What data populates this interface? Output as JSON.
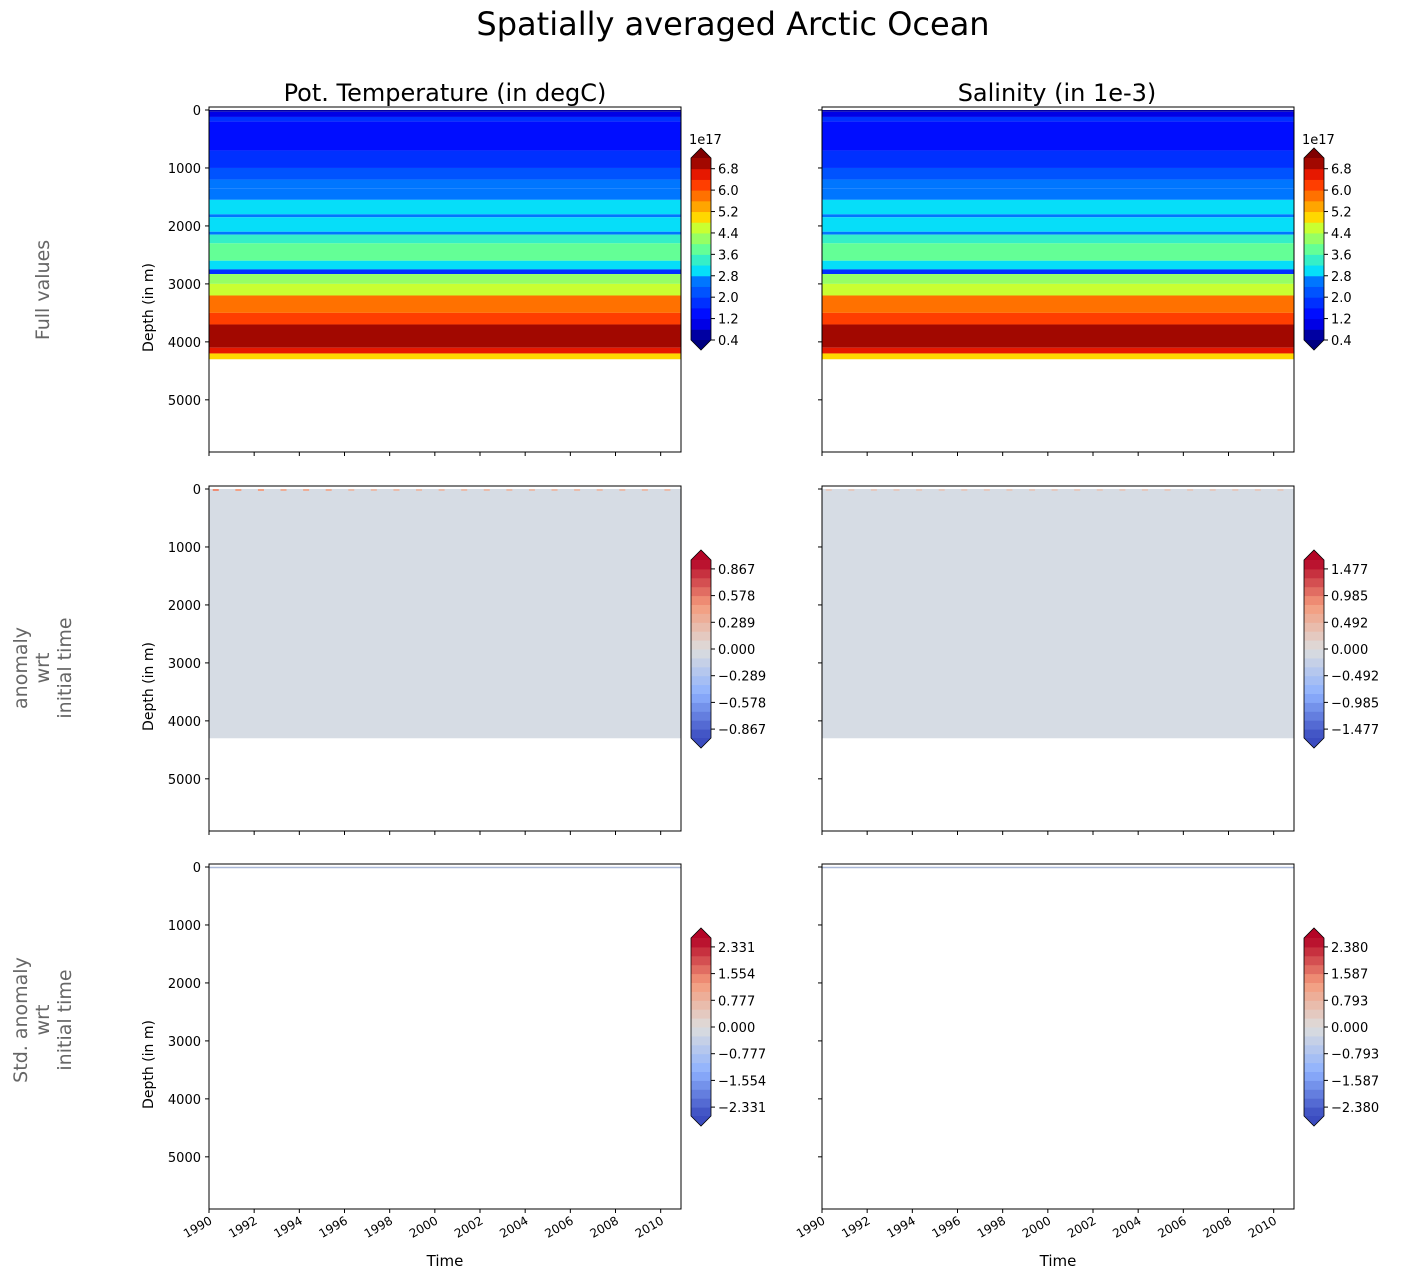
{
  "suptitle": "Spatially averaged Arctic Ocean",
  "column_titles": [
    "Pot. Temperature (in degC)",
    "Salinity (in 1e-3)"
  ],
  "row_labels": [
    [
      "Full values"
    ],
    [
      "anomaly",
      "wrt",
      "initial time"
    ],
    [
      "Std. anomaly",
      "wrt",
      "initial time"
    ]
  ],
  "chart_data": [
    {
      "type": "heatmap",
      "row": 0,
      "col": 0,
      "colormap": "jet",
      "ylabel": "Depth (in m)",
      "xlabel": "",
      "ylim": [
        5900,
        0
      ],
      "xlim": [
        1990,
        2010.9
      ],
      "yticks": [
        0,
        1000,
        2000,
        3000,
        4000,
        5000
      ],
      "xticks": [
        "1990",
        "1992",
        "1994",
        "1996",
        "1998",
        "2000",
        "2002",
        "2004",
        "2006",
        "2008",
        "2010"
      ],
      "data_max_depth": 4300,
      "profile": [
        [
          0,
          30,
          0.6
        ],
        [
          30,
          120,
          1.0
        ],
        [
          120,
          200,
          1.6
        ],
        [
          200,
          700,
          1.2
        ],
        [
          700,
          1000,
          1.6
        ],
        [
          1000,
          1200,
          2.0
        ],
        [
          1200,
          1350,
          2.4
        ],
        [
          1350,
          1550,
          2.6
        ],
        [
          1550,
          1800,
          2.9
        ],
        [
          1800,
          1850,
          2.5
        ],
        [
          1850,
          2100,
          3.0
        ],
        [
          2100,
          2150,
          2.4
        ],
        [
          2150,
          2300,
          3.2
        ],
        [
          2300,
          2600,
          3.7
        ],
        [
          2600,
          2750,
          3.0
        ],
        [
          2750,
          2830,
          1.8
        ],
        [
          2830,
          3000,
          4.2
        ],
        [
          3000,
          3200,
          4.6
        ],
        [
          3200,
          3500,
          5.6
        ],
        [
          3500,
          3700,
          6.2
        ],
        [
          3700,
          4100,
          7.0
        ],
        [
          4100,
          4200,
          6.4
        ],
        [
          4200,
          4300,
          5.0
        ]
      ],
      "colorbar": {
        "offset_label": "1e17",
        "ticks": [
          "0.4",
          "1.2",
          "2.0",
          "2.8",
          "3.6",
          "4.4",
          "5.2",
          "6.0",
          "6.8"
        ],
        "range": [
          0.4,
          7.2
        ],
        "nbands": 17,
        "extend": "both"
      }
    },
    {
      "type": "heatmap",
      "row": 0,
      "col": 1,
      "colormap": "jet",
      "ylabel": "",
      "xlabel": "",
      "ylim": [
        5900,
        0
      ],
      "xlim": [
        1990,
        2010.9
      ],
      "yticks": [
        0,
        1000,
        2000,
        3000,
        4000,
        5000
      ],
      "xticks": [
        "1990",
        "1992",
        "1994",
        "1996",
        "1998",
        "2000",
        "2002",
        "2004",
        "2006",
        "2008",
        "2010"
      ],
      "data_max_depth": 4300,
      "profile": [
        [
          0,
          30,
          0.6
        ],
        [
          30,
          120,
          1.0
        ],
        [
          120,
          200,
          1.6
        ],
        [
          200,
          700,
          1.2
        ],
        [
          700,
          1000,
          1.6
        ],
        [
          1000,
          1200,
          2.0
        ],
        [
          1200,
          1350,
          2.4
        ],
        [
          1350,
          1550,
          2.6
        ],
        [
          1550,
          1800,
          2.9
        ],
        [
          1800,
          1850,
          2.5
        ],
        [
          1850,
          2100,
          3.0
        ],
        [
          2100,
          2150,
          2.4
        ],
        [
          2150,
          2300,
          3.2
        ],
        [
          2300,
          2600,
          3.7
        ],
        [
          2600,
          2750,
          3.0
        ],
        [
          2750,
          2830,
          1.8
        ],
        [
          2830,
          3000,
          4.2
        ],
        [
          3000,
          3200,
          4.6
        ],
        [
          3200,
          3500,
          5.6
        ],
        [
          3500,
          3700,
          6.2
        ],
        [
          3700,
          4100,
          7.0
        ],
        [
          4100,
          4200,
          6.4
        ],
        [
          4200,
          4300,
          5.0
        ]
      ],
      "colorbar": {
        "offset_label": "1e17",
        "ticks": [
          "0.4",
          "1.2",
          "2.0",
          "2.8",
          "3.6",
          "4.4",
          "5.2",
          "6.0",
          "6.8"
        ],
        "range": [
          0.4,
          7.2
        ],
        "nbands": 17,
        "extend": "both"
      }
    },
    {
      "type": "heatmap",
      "row": 1,
      "col": 0,
      "colormap": "coolwarm",
      "ylabel": "Depth (in m)",
      "xlabel": "",
      "ylim": [
        5900,
        0
      ],
      "xlim": [
        1990,
        2010.9
      ],
      "yticks": [
        0,
        1000,
        2000,
        3000,
        4000,
        5000
      ],
      "xticks": [
        "1990",
        "1992",
        "1994",
        "1996",
        "1998",
        "2000",
        "2002",
        "2004",
        "2006",
        "2008",
        "2010"
      ],
      "data_max_depth": 4300,
      "fill_value": 0.0,
      "surface_spikes": [
        0.5,
        0.4,
        0.4,
        0.3,
        0.3,
        0.3,
        0.2,
        0.2,
        0.2,
        0.2,
        0.2,
        0.2,
        0.2,
        0.2,
        0.2,
        0.2,
        0.2,
        0.2,
        0.2,
        0.2,
        0.2
      ],
      "colorbar": {
        "offset_label": "",
        "ticks": [
          "−0.867",
          "−0.578",
          "−0.289",
          "0.000",
          "0.289",
          "0.578",
          "0.867"
        ],
        "range": [
          -0.963,
          0.963
        ],
        "nbands": 20,
        "extend": "both"
      }
    },
    {
      "type": "heatmap",
      "row": 1,
      "col": 1,
      "colormap": "coolwarm",
      "ylabel": "",
      "xlabel": "",
      "ylim": [
        5900,
        0
      ],
      "xlim": [
        1990,
        2010.9
      ],
      "yticks": [
        0,
        1000,
        2000,
        3000,
        4000,
        5000
      ],
      "xticks": [
        "1990",
        "1992",
        "1994",
        "1996",
        "1998",
        "2000",
        "2002",
        "2004",
        "2006",
        "2008",
        "2010"
      ],
      "data_max_depth": 4300,
      "fill_value": 0.0,
      "surface_spikes": [
        0.3,
        0.3,
        0.3,
        0.3,
        0.3,
        0.3,
        0.2,
        0.2,
        0.2,
        0.2,
        0.2,
        0.2,
        0.2,
        0.2,
        0.2,
        0.2,
        0.2,
        0.2,
        0.2,
        0.2,
        0.2
      ],
      "colorbar": {
        "offset_label": "",
        "ticks": [
          "−1.477",
          "−0.985",
          "−0.492",
          "0.000",
          "0.492",
          "0.985",
          "1.477"
        ],
        "range": [
          -1.641,
          1.641
        ],
        "nbands": 20,
        "extend": "both"
      }
    },
    {
      "type": "heatmap",
      "row": 2,
      "col": 0,
      "colormap": "coolwarm",
      "ylabel": "Depth (in m)",
      "xlabel": "Time",
      "ylim": [
        5900,
        0
      ],
      "xlim": [
        1990,
        2010.9
      ],
      "yticks": [
        0,
        1000,
        2000,
        3000,
        4000,
        5000
      ],
      "xticks": [
        "1990",
        "1992",
        "1994",
        "1996",
        "1998",
        "2000",
        "2002",
        "2004",
        "2006",
        "2008",
        "2010"
      ],
      "data_max_depth": 20,
      "colorbar": {
        "offset_label": "",
        "ticks": [
          "−2.331",
          "−1.554",
          "−0.777",
          "0.000",
          "0.777",
          "1.554",
          "2.331"
        ],
        "range": [
          -2.59,
          2.59
        ],
        "nbands": 20,
        "extend": "both"
      }
    },
    {
      "type": "heatmap",
      "row": 2,
      "col": 1,
      "colormap": "coolwarm",
      "ylabel": "",
      "xlabel": "Time",
      "ylim": [
        5900,
        0
      ],
      "xlim": [
        1990,
        2010.9
      ],
      "yticks": [
        0,
        1000,
        2000,
        3000,
        4000,
        5000
      ],
      "xticks": [
        "1990",
        "1992",
        "1994",
        "1996",
        "1998",
        "2000",
        "2002",
        "2004",
        "2006",
        "2008",
        "2010"
      ],
      "data_max_depth": 20,
      "colorbar": {
        "offset_label": "",
        "ticks": [
          "−2.380",
          "−1.587",
          "−0.793",
          "0.000",
          "0.793",
          "1.587",
          "2.380"
        ],
        "range": [
          -2.644,
          2.644
        ],
        "nbands": 20,
        "extend": "both"
      }
    }
  ]
}
